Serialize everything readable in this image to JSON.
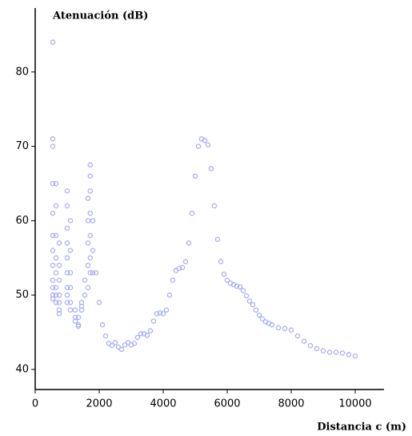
{
  "chart_data": {
    "type": "scatter",
    "title": "Atenuación (dB)",
    "x_label": "Distancia c (m)",
    "color": "#aab0f2",
    "xlim": [
      0,
      10900
    ],
    "ylim": [
      37.3,
      88.6
    ],
    "xticks": [
      0,
      2000,
      4000,
      6000,
      8000,
      10000
    ],
    "yticks": [
      40,
      50,
      60,
      70,
      80
    ],
    "x": [
      550,
      550,
      550,
      550,
      550,
      550,
      550,
      550,
      550,
      550,
      550,
      550,
      650,
      650,
      650,
      650,
      650,
      650,
      650,
      650,
      750,
      750,
      750,
      750,
      750,
      750,
      750,
      1000,
      1000,
      1000,
      1000,
      1000,
      1000,
      1000,
      1000,
      1000,
      1100,
      1100,
      1100,
      1100,
      1100,
      1100,
      1250,
      1250,
      1250,
      1350,
      1350,
      1350,
      1450,
      1450,
      1450,
      1550,
      1550,
      1650,
      1650,
      1650,
      1650,
      1650,
      1720,
      1720,
      1720,
      1720,
      1720,
      1720,
      1720,
      1800,
      1800,
      1800,
      1900,
      2000,
      2100,
      2200,
      2300,
      2400,
      2500,
      2600,
      2700,
      2800,
      2900,
      3000,
      3100,
      3200,
      3300,
      3400,
      3500,
      3600,
      3700,
      3800,
      3900,
      4000,
      4100,
      4200,
      4300,
      4400,
      4500,
      4600,
      4700,
      4800,
      4900,
      5000,
      5100,
      5200,
      5300,
      5400,
      5500,
      5600,
      5700,
      5800,
      5900,
      6000,
      6100,
      6200,
      6300,
      6400,
      6500,
      6600,
      6700,
      6800,
      6900,
      7000,
      7100,
      7200,
      7300,
      7400,
      7600,
      7800,
      8000,
      8200,
      8400,
      8600,
      8800,
      9000,
      9200,
      9400,
      9600,
      9800,
      10000
    ],
    "values": [
      84,
      71,
      70,
      65,
      61,
      58,
      56,
      54,
      52,
      51,
      50,
      49.5,
      65,
      62,
      58,
      55,
      53,
      51,
      50,
      49,
      57,
      54,
      52,
      50,
      49,
      48,
      47.5,
      64,
      62,
      59,
      57,
      55,
      53,
      51,
      50,
      49,
      60,
      56,
      53,
      51,
      49,
      48,
      48,
      47,
      46.5,
      46,
      45.8,
      47,
      48,
      49,
      48.5,
      52,
      50,
      63,
      60,
      57,
      54,
      51,
      67.5,
      66,
      64,
      61,
      58,
      55,
      53,
      60,
      56,
      53,
      53,
      49,
      46,
      44.5,
      43.5,
      43.2,
      43.6,
      43.0,
      42.7,
      43.3,
      43.6,
      43.3,
      43.5,
      44.3,
      44.8,
      44.8,
      44.6,
      45.2,
      46.5,
      47.5,
      47.6,
      47.5,
      48.0,
      50.0,
      52.0,
      53.3,
      53.6,
      53.7,
      54.5,
      57,
      61,
      66,
      70,
      71,
      70.8,
      70.2,
      67,
      62,
      57.5,
      54.5,
      52.8,
      52,
      51.6,
      51.4,
      51.2,
      51.1,
      50.6,
      49.9,
      49.2,
      48.7,
      48.0,
      47.3,
      46.8,
      46.4,
      46.2,
      46.0,
      45.6,
      45.5,
      45.3,
      44.5,
      43.8,
      43.2,
      42.8,
      42.5,
      42.3,
      42.3,
      42.2,
      42.0,
      41.8
    ]
  }
}
